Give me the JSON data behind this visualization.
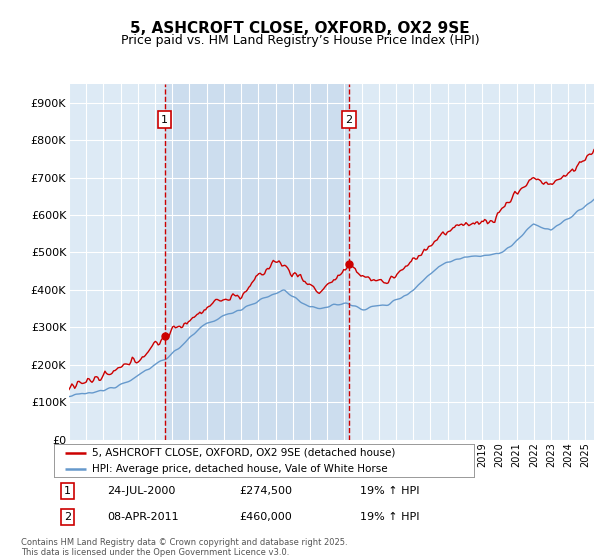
{
  "title": "5, ASHCROFT CLOSE, OXFORD, OX2 9SE",
  "subtitle": "Price paid vs. HM Land Registry’s House Price Index (HPI)",
  "ylabel_ticks": [
    "£0",
    "£100K",
    "£200K",
    "£300K",
    "£400K",
    "£500K",
    "£600K",
    "£700K",
    "£800K",
    "£900K"
  ],
  "ytick_values": [
    0,
    100000,
    200000,
    300000,
    400000,
    500000,
    600000,
    700000,
    800000,
    900000
  ],
  "ylim": [
    0,
    950000
  ],
  "xlim_start": 1995.0,
  "xlim_end": 2025.5,
  "background_color": "#ffffff",
  "plot_bg_color": "#ddeaf5",
  "grid_color": "#ffffff",
  "shade_color": "#c5d8ec",
  "sale1_date": "24-JUL-2000",
  "sale1_price": 274500,
  "sale1_hpi": "19% ↑ HPI",
  "sale1_x": 2000.56,
  "sale2_date": "08-APR-2011",
  "sale2_price": 460000,
  "sale2_hpi": "19% ↑ HPI",
  "sale2_x": 2011.27,
  "legend_line1": "5, ASHCROFT CLOSE, OXFORD, OX2 9SE (detached house)",
  "legend_line2": "HPI: Average price, detached house, Vale of White Horse",
  "footnote": "Contains HM Land Registry data © Crown copyright and database right 2025.\nThis data is licensed under the Open Government Licence v3.0.",
  "red_color": "#cc0000",
  "blue_color": "#6699cc",
  "title_fontsize": 11,
  "subtitle_fontsize": 9
}
